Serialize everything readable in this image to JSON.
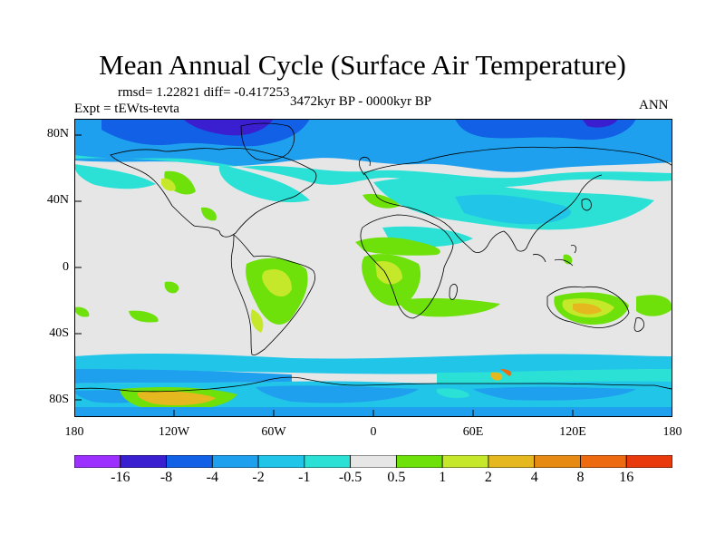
{
  "title": "Mean Annual Cycle (Surface Air Temperature)",
  "stats": "rmsd= 1.22821 diff= -0.417253",
  "experiment": "Expt = tEWts-tevta",
  "period": "3472kyr BP - 0000kyr BP",
  "season": "ANN",
  "y_axis_labels": [
    "80N",
    "40N",
    "0",
    "40S",
    "80S"
  ],
  "x_axis_labels": [
    "180",
    "120W",
    "60W",
    "0",
    "60E",
    "120E",
    "180"
  ],
  "colorbar": {
    "labels": [
      "-16",
      "-8",
      "-4",
      "-2",
      "-1",
      "-0.5",
      "0.5",
      "1",
      "2",
      "4",
      "8",
      "16"
    ],
    "colors": [
      "#9b30ff",
      "#3a1fd0",
      "#1160e6",
      "#1fa0ee",
      "#21c5e8",
      "#2be1d6",
      "#e6e6e6",
      "#6ee00a",
      "#c6e82a",
      "#e6b820",
      "#e68a14",
      "#ee6a10",
      "#e83a0c"
    ]
  }
}
